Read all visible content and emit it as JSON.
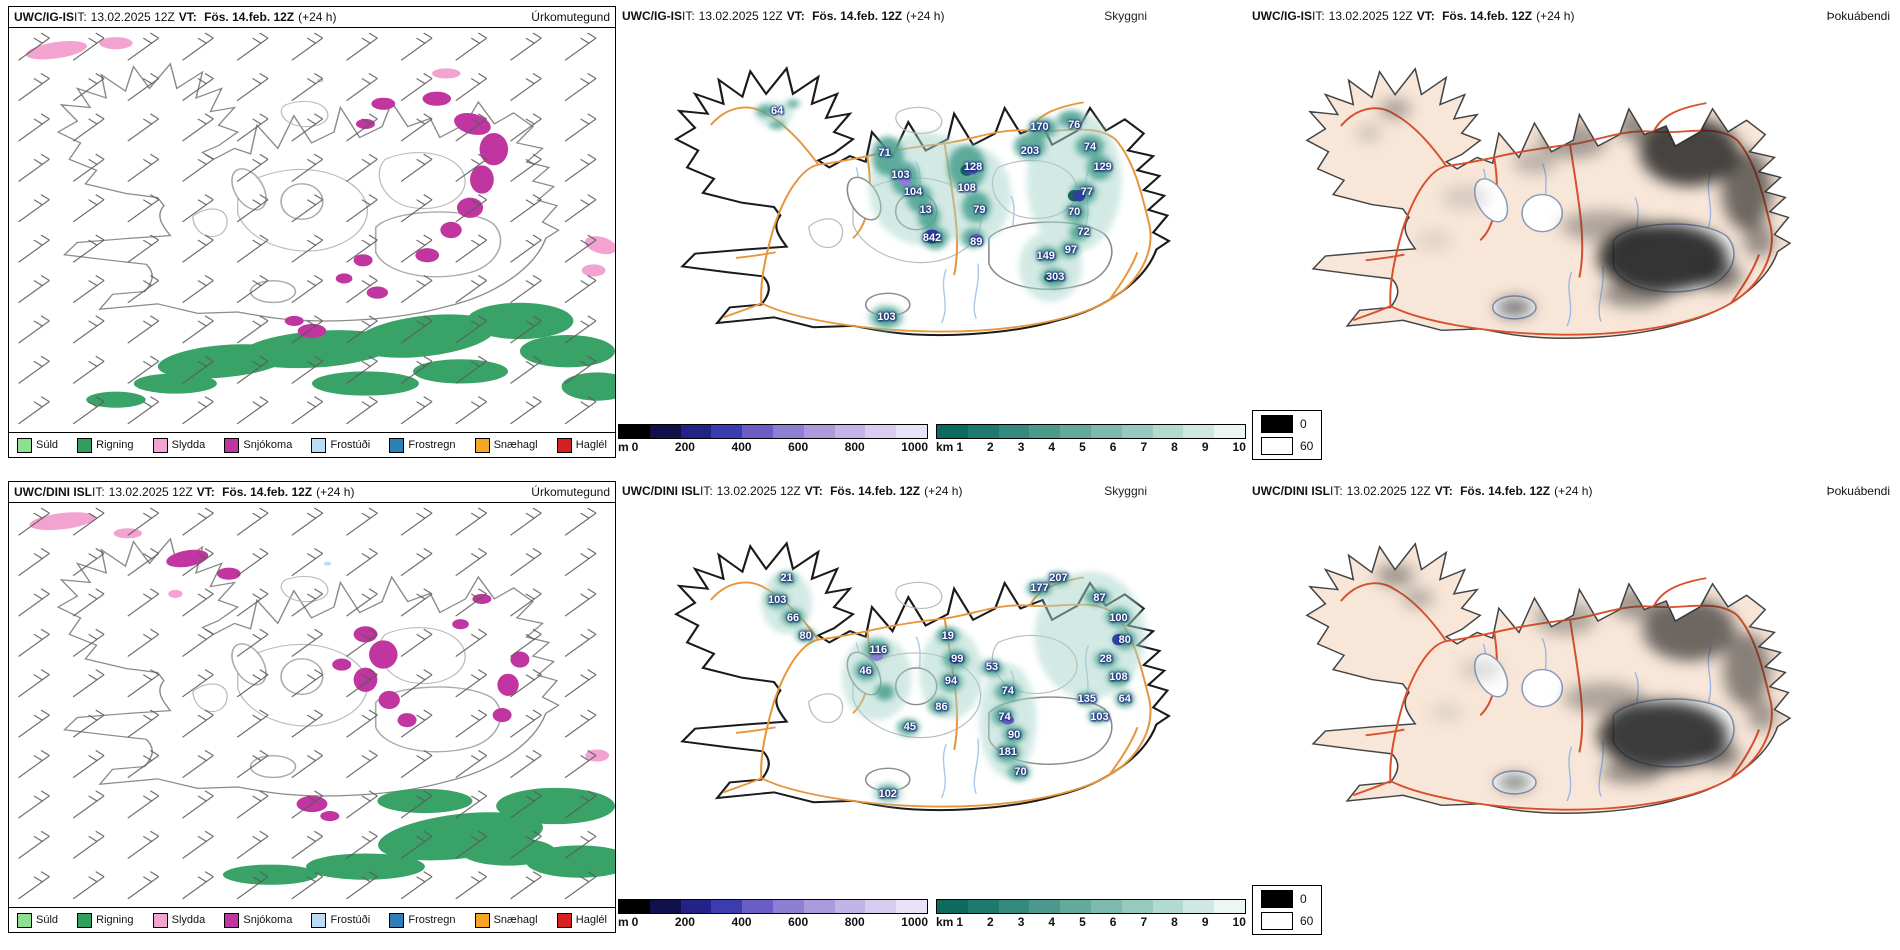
{
  "rows": [
    {
      "header": {
        "model": "UWC/IG-IS",
        "it_label": "IT:",
        "init": "13.02.2025 12Z",
        "vt_label": "VT:",
        "valid": "Fös. 14.feb. 12Z",
        "lead": "(+24 h)"
      },
      "precip": {
        "product": "Úrkomutegund"
      },
      "vis": {
        "product": "Skyggni",
        "values": [
          {
            "x": 25.5,
            "y": 21.5,
            "t": "64"
          },
          {
            "x": 42.5,
            "y": 32,
            "t": "71"
          },
          {
            "x": 45,
            "y": 37.5,
            "t": "103"
          },
          {
            "x": 47,
            "y": 42,
            "t": "104"
          },
          {
            "x": 49,
            "y": 46.5,
            "t": "13"
          },
          {
            "x": 56.5,
            "y": 35.5,
            "t": "128"
          },
          {
            "x": 55.5,
            "y": 41,
            "t": "108"
          },
          {
            "x": 57.5,
            "y": 46.5,
            "t": "79"
          },
          {
            "x": 50,
            "y": 53.5,
            "t": "842"
          },
          {
            "x": 57,
            "y": 54.5,
            "t": "89"
          },
          {
            "x": 65.5,
            "y": 31.5,
            "t": "203"
          },
          {
            "x": 67,
            "y": 25.5,
            "t": "170"
          },
          {
            "x": 72.5,
            "y": 25,
            "t": "76"
          },
          {
            "x": 75,
            "y": 30.5,
            "t": "74"
          },
          {
            "x": 77,
            "y": 35.5,
            "t": "129"
          },
          {
            "x": 74.5,
            "y": 42,
            "t": "77"
          },
          {
            "x": 72.5,
            "y": 47,
            "t": "70"
          },
          {
            "x": 74,
            "y": 52,
            "t": "72"
          },
          {
            "x": 72,
            "y": 56.5,
            "t": "97"
          },
          {
            "x": 68,
            "y": 58,
            "t": "149"
          },
          {
            "x": 69.5,
            "y": 63.5,
            "t": "303"
          },
          {
            "x": 42.8,
            "y": 73.5,
            "t": "103"
          }
        ]
      },
      "fog": {
        "product": "Þokuábendi"
      }
    },
    {
      "header": {
        "model": "UWC/DINI ISL",
        "it_label": "IT:",
        "init": "13.02.2025 12Z",
        "vt_label": "VT:",
        "valid": "Fös. 14.feb. 12Z",
        "lead": "(+24 h)"
      },
      "precip": {
        "product": "Úrkomutegund"
      },
      "vis": {
        "product": "Skyggni",
        "values": [
          {
            "x": 27,
            "y": 19.5,
            "t": "21"
          },
          {
            "x": 25.5,
            "y": 25,
            "t": "103"
          },
          {
            "x": 28,
            "y": 29.5,
            "t": "66"
          },
          {
            "x": 30,
            "y": 34,
            "t": "80"
          },
          {
            "x": 41.5,
            "y": 37.5,
            "t": "116"
          },
          {
            "x": 39.5,
            "y": 43,
            "t": "46"
          },
          {
            "x": 52.5,
            "y": 34,
            "t": "19"
          },
          {
            "x": 54,
            "y": 40,
            "t": "99"
          },
          {
            "x": 53,
            "y": 45.5,
            "t": "94"
          },
          {
            "x": 51.5,
            "y": 52,
            "t": "86"
          },
          {
            "x": 46.5,
            "y": 57,
            "t": "45"
          },
          {
            "x": 59.5,
            "y": 42,
            "t": "53"
          },
          {
            "x": 62,
            "y": 48,
            "t": "74"
          },
          {
            "x": 61.5,
            "y": 54.5,
            "t": "74"
          },
          {
            "x": 63,
            "y": 59,
            "t": "90"
          },
          {
            "x": 62,
            "y": 63.5,
            "t": "181"
          },
          {
            "x": 64,
            "y": 68.5,
            "t": "70"
          },
          {
            "x": 43,
            "y": 74,
            "t": "102"
          },
          {
            "x": 67,
            "y": 22,
            "t": "177"
          },
          {
            "x": 70,
            "y": 19.5,
            "t": "207"
          },
          {
            "x": 76.5,
            "y": 24.5,
            "t": "87"
          },
          {
            "x": 79.5,
            "y": 29.5,
            "t": "100"
          },
          {
            "x": 80.5,
            "y": 35,
            "t": "80"
          },
          {
            "x": 77.5,
            "y": 40,
            "t": "28"
          },
          {
            "x": 79.5,
            "y": 44.5,
            "t": "108"
          },
          {
            "x": 80.5,
            "y": 50,
            "t": "64"
          },
          {
            "x": 74.5,
            "y": 50,
            "t": "135"
          },
          {
            "x": 76.5,
            "y": 54.5,
            "t": "103"
          }
        ]
      },
      "fog": {
        "product": "Þokuábendi"
      }
    }
  ],
  "precip_legend": [
    {
      "label": "Súld",
      "color": "#8de08d"
    },
    {
      "label": "Rigning",
      "color": "#2f9e5f"
    },
    {
      "label": "Slydda",
      "color": "#f2a3cf"
    },
    {
      "label": "Snjókoma",
      "color": "#c035a0"
    },
    {
      "label": "Frostúði",
      "color": "#badcf5"
    },
    {
      "label": "Frostregn",
      "color": "#2d7fb8"
    },
    {
      "label": "Snæhagl",
      "color": "#f5a623"
    },
    {
      "label": "Haglél",
      "color": "#d42020"
    }
  ],
  "vis_colorbar": {
    "m_label": "m",
    "m_ticks": [
      "0",
      "200",
      "400",
      "600",
      "800",
      "1000"
    ],
    "m_colors": [
      "#000000",
      "#10104a",
      "#232387",
      "#3c3cb0",
      "#6a5ec6",
      "#8f7fd4",
      "#ac9ade",
      "#c3b4e8",
      "#d8ccf1",
      "#eae3f8"
    ],
    "km_label": "km",
    "km_ticks": [
      "1",
      "2",
      "3",
      "4",
      "5",
      "6",
      "7",
      "8",
      "9",
      "10"
    ],
    "km_colors": [
      "#0d6b5e",
      "#1f7a6e",
      "#338a7d",
      "#4a998c",
      "#63a99c",
      "#7db9ad",
      "#98c9bf",
      "#b4d9d1",
      "#d0e8e3",
      "#ecf7f4"
    ]
  },
  "fog_legend": [
    {
      "label": "0",
      "color": "#000000"
    },
    {
      "label": "60",
      "color": "#ffffff"
    }
  ]
}
